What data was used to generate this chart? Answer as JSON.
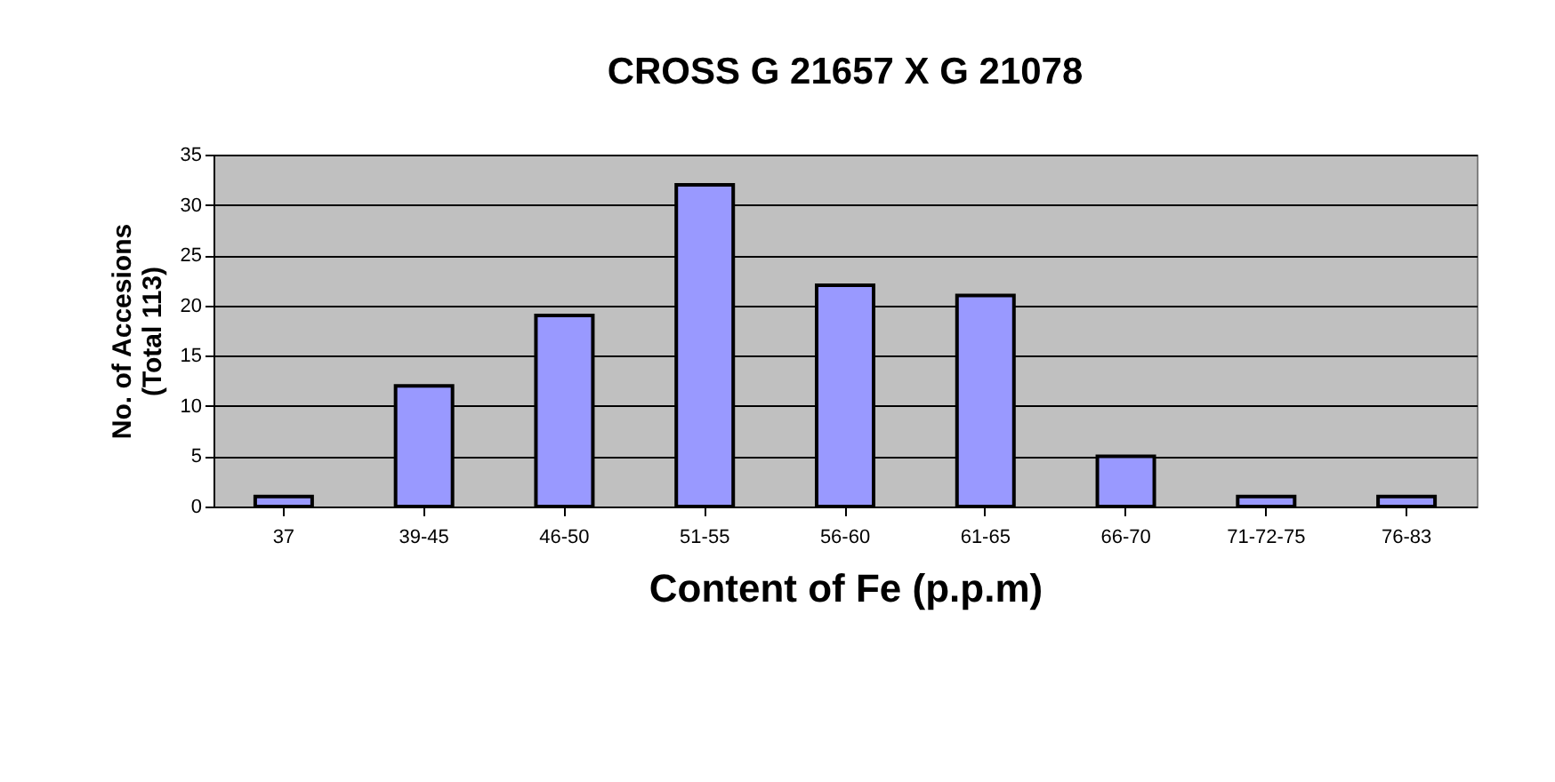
{
  "chart_data": {
    "type": "bar",
    "title": "CROSS G 21657 X G 21078",
    "xlabel": "Content of Fe (p.p.m)",
    "ylabel": "No. of Accesions\n(Total 113)",
    "categories": [
      "37",
      "39-45",
      "46-50",
      "51-55",
      "56-60",
      "61-65",
      "66-70",
      "71-72-75",
      "76-83"
    ],
    "values": [
      1,
      12,
      19,
      32,
      22,
      21,
      5,
      1,
      1
    ],
    "color": "#9999ff",
    "ylim": [
      0,
      35
    ],
    "yticks": [
      0,
      5,
      10,
      15,
      20,
      25,
      30,
      35
    ],
    "grid": "y"
  }
}
